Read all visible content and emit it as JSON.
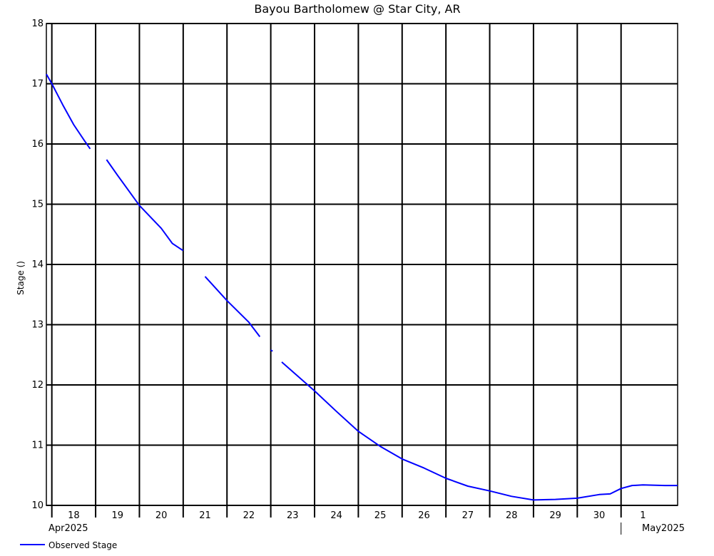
{
  "chart_data": {
    "type": "line",
    "title": "Bayou Bartholomew @ Star City, AR",
    "ylabel": "Stage ()",
    "ylim": [
      10,
      18
    ],
    "yticks": [
      "10",
      "11",
      "12",
      "13",
      "14",
      "15",
      "16",
      "17",
      "18"
    ],
    "xlim": [
      "2025-04-17T21:00",
      "2025-05-02T07:00"
    ],
    "xticks": [
      "18",
      "19",
      "20",
      "21",
      "22",
      "23",
      "24",
      "25",
      "26",
      "27",
      "28",
      "29",
      "30",
      "1"
    ],
    "xtick_dates": [
      "2025-04-18",
      "2025-04-19",
      "2025-04-20",
      "2025-04-21",
      "2025-04-22",
      "2025-04-23",
      "2025-04-24",
      "2025-04-25",
      "2025-04-26",
      "2025-04-27",
      "2025-04-28",
      "2025-04-29",
      "2025-04-30",
      "2025-05-01"
    ],
    "month_labels": [
      {
        "text": "Apr2025",
        "date": "2025-04-18"
      },
      {
        "text": "May2025",
        "date": "2025-05-01"
      }
    ],
    "grid": true,
    "legend": "bottom-left",
    "series": [
      {
        "name": "Observed Stage",
        "color": "#0000ff",
        "segments": [
          [
            [
              "2025-04-17T21:00",
              17.16
            ],
            [
              "2025-04-18T00:00",
              17.0
            ],
            [
              "2025-04-18T06:00",
              16.65
            ],
            [
              "2025-04-18T12:00",
              16.32
            ],
            [
              "2025-04-18T18:00",
              16.05
            ],
            [
              "2025-04-18T21:00",
              15.92
            ]
          ],
          [
            [
              "2025-04-19T06:00",
              15.74
            ],
            [
              "2025-04-19T12:00",
              15.48
            ],
            [
              "2025-04-20T00:00",
              14.98
            ],
            [
              "2025-04-20T12:00",
              14.6
            ],
            [
              "2025-04-20T18:00",
              14.35
            ],
            [
              "2025-04-21T00:00",
              14.23
            ]
          ],
          [
            [
              "2025-04-21T12:00",
              13.8
            ],
            [
              "2025-04-22T00:00",
              13.4
            ],
            [
              "2025-04-22T12:00",
              13.04
            ],
            [
              "2025-04-22T18:00",
              12.8
            ]
          ],
          [
            [
              "2025-04-23T00:00",
              12.58
            ],
            [
              "2025-04-23T01:00",
              12.56
            ]
          ],
          [
            [
              "2025-04-23T06:00",
              12.38
            ],
            [
              "2025-04-24T00:00",
              11.9
            ],
            [
              "2025-04-24T12:00",
              11.56
            ],
            [
              "2025-04-25T00:00",
              11.23
            ],
            [
              "2025-04-25T12:00",
              10.98
            ],
            [
              "2025-04-26T00:00",
              10.77
            ],
            [
              "2025-04-26T12:00",
              10.62
            ],
            [
              "2025-04-27T00:00",
              10.45
            ],
            [
              "2025-04-27T12:00",
              10.32
            ],
            [
              "2025-04-28T00:00",
              10.24
            ],
            [
              "2025-04-28T12:00",
              10.15
            ],
            [
              "2025-04-29T00:00",
              10.09
            ],
            [
              "2025-04-29T12:00",
              10.1
            ],
            [
              "2025-04-30T00:00",
              10.12
            ],
            [
              "2025-04-30T12:00",
              10.18
            ],
            [
              "2025-04-30T18:00",
              10.19
            ],
            [
              "2025-05-01T00:00",
              10.28
            ],
            [
              "2025-05-01T06:00",
              10.33
            ],
            [
              "2025-05-01T12:00",
              10.34
            ],
            [
              "2025-05-02T00:00",
              10.33
            ],
            [
              "2025-05-02T07:00",
              10.33
            ]
          ]
        ]
      }
    ]
  }
}
